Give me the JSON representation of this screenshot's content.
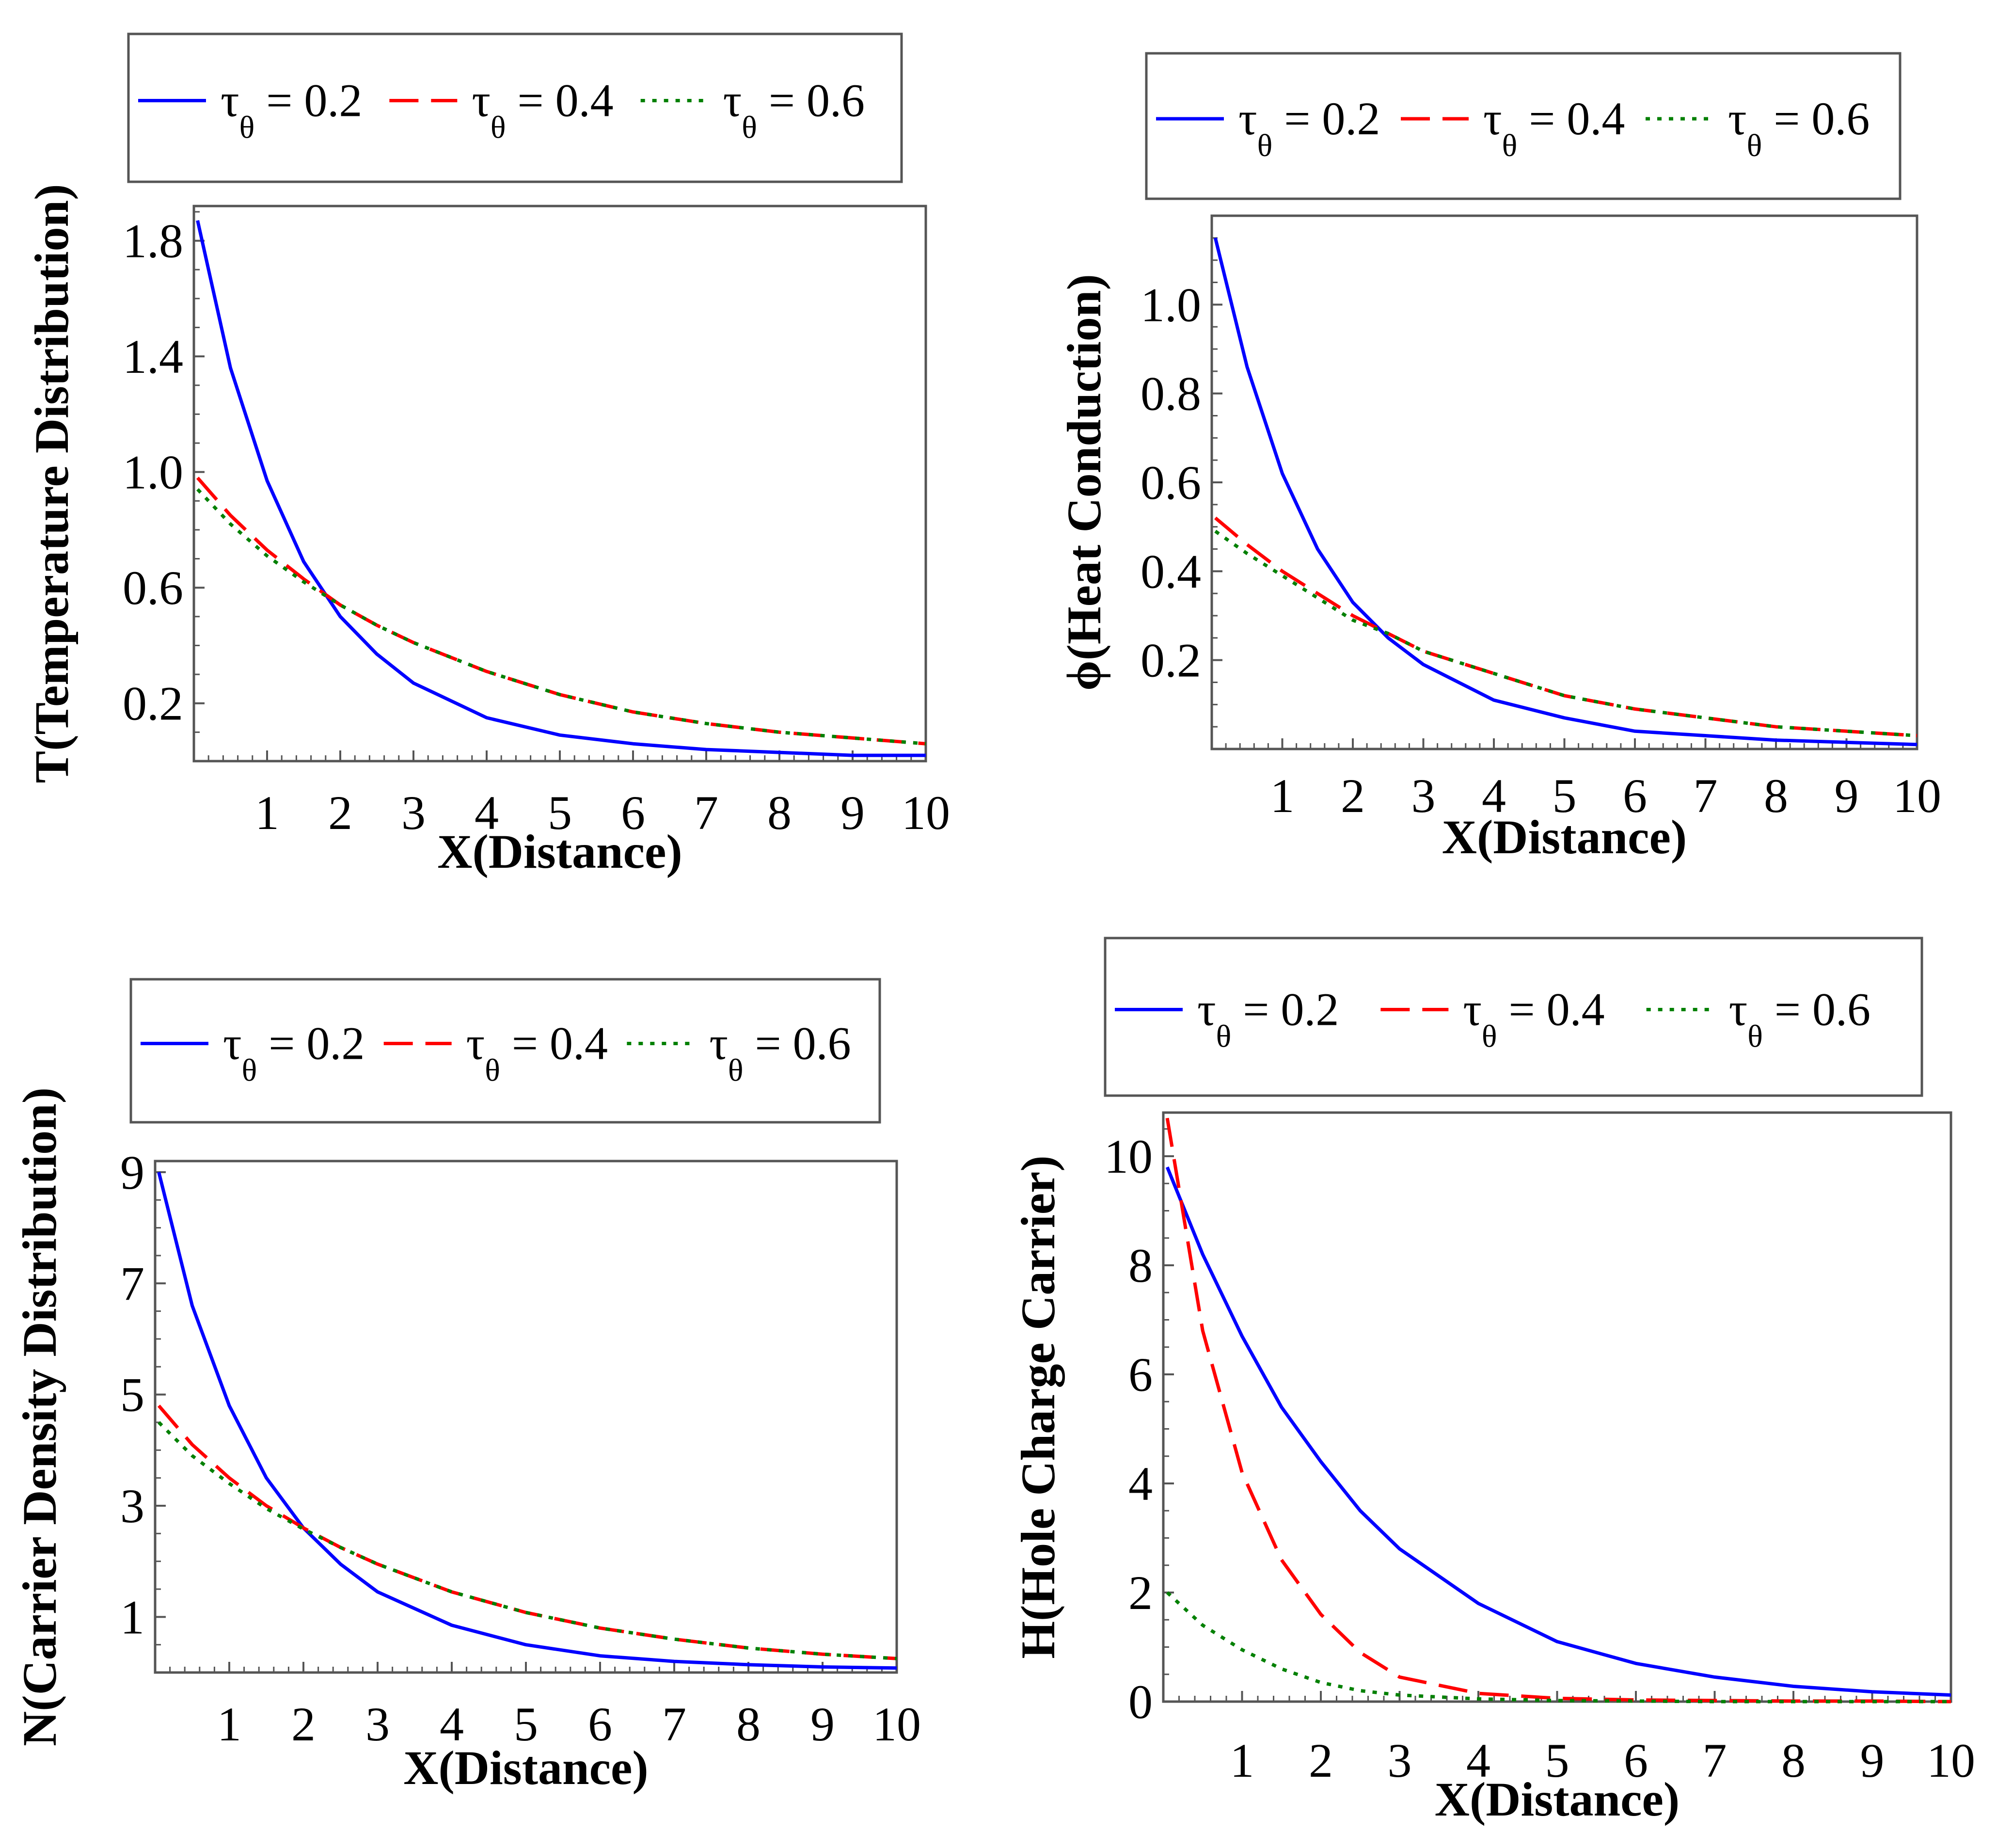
{
  "legend": {
    "entries": [
      {
        "symbol": "τ",
        "subscript": "θ",
        "text": " = 0.2",
        "color": "#0000ff",
        "dash": "solid"
      },
      {
        "symbol": "τ",
        "subscript": "θ",
        "text": " = 0.4",
        "color": "#ff0000",
        "dash": "dashed"
      },
      {
        "symbol": "τ",
        "subscript": "θ",
        "text": " = 0.6",
        "color": "#008000",
        "dash": "dotted"
      }
    ]
  },
  "chart_data": [
    {
      "type": "line",
      "id": "temperature",
      "xlabel": "X(Distance)",
      "ylabel": "T(Temperature Distribution)",
      "xlim": [
        0,
        10
      ],
      "ylim": [
        0.0,
        1.92
      ],
      "xticks": [
        "1",
        "2",
        "3",
        "4",
        "5",
        "6",
        "7",
        "8",
        "9",
        "10"
      ],
      "yticks": [
        {
          "v": 0.2,
          "label": "0.2"
        },
        {
          "v": 0.6,
          "label": "0.6"
        },
        {
          "v": 1.0,
          "label": "1.0"
        },
        {
          "v": 1.4,
          "label": "1.4"
        },
        {
          "v": 1.8,
          "label": "1.8"
        }
      ],
      "x": [
        0.05,
        0.5,
        1,
        1.5,
        2,
        2.5,
        3,
        4,
        5,
        6,
        7,
        8,
        9,
        10
      ],
      "series": [
        {
          "name": "τθ = 0.2",
          "values": [
            1.87,
            1.36,
            0.97,
            0.69,
            0.5,
            0.37,
            0.27,
            0.15,
            0.09,
            0.06,
            0.04,
            0.03,
            0.02,
            0.02
          ]
        },
        {
          "name": "τθ = 0.4",
          "values": [
            0.98,
            0.85,
            0.73,
            0.63,
            0.54,
            0.47,
            0.41,
            0.31,
            0.23,
            0.17,
            0.13,
            0.1,
            0.08,
            0.06
          ]
        },
        {
          "name": "τθ = 0.6",
          "values": [
            0.94,
            0.82,
            0.71,
            0.62,
            0.54,
            0.47,
            0.41,
            0.31,
            0.23,
            0.17,
            0.13,
            0.1,
            0.08,
            0.06
          ]
        }
      ]
    },
    {
      "type": "line",
      "id": "heat-conduction",
      "xlabel": "X(Distance)",
      "ylabel": "ϕ(Heat Conduction)",
      "xlim": [
        0,
        10
      ],
      "ylim": [
        0.0,
        1.2
      ],
      "xticks": [
        "1",
        "2",
        "3",
        "4",
        "5",
        "6",
        "7",
        "8",
        "9",
        "10"
      ],
      "yticks": [
        {
          "v": 0.2,
          "label": "0.2"
        },
        {
          "v": 0.4,
          "label": "0.4"
        },
        {
          "v": 0.6,
          "label": "0.6"
        },
        {
          "v": 0.8,
          "label": "0.8"
        },
        {
          "v": 1.0,
          "label": "1.0"
        }
      ],
      "x": [
        0.05,
        0.5,
        1,
        1.5,
        2,
        2.5,
        3,
        4,
        5,
        6,
        7,
        8,
        9,
        10
      ],
      "series": [
        {
          "name": "τθ = 0.2",
          "values": [
            1.15,
            0.86,
            0.62,
            0.45,
            0.33,
            0.25,
            0.19,
            0.11,
            0.07,
            0.04,
            0.03,
            0.02,
            0.015,
            0.01
          ]
        },
        {
          "name": "τθ = 0.4",
          "values": [
            0.52,
            0.46,
            0.4,
            0.35,
            0.3,
            0.26,
            0.22,
            0.17,
            0.12,
            0.09,
            0.07,
            0.05,
            0.04,
            0.03
          ]
        },
        {
          "name": "τθ = 0.6",
          "values": [
            0.49,
            0.44,
            0.39,
            0.34,
            0.29,
            0.26,
            0.22,
            0.17,
            0.12,
            0.09,
            0.07,
            0.05,
            0.04,
            0.03
          ]
        }
      ]
    },
    {
      "type": "line",
      "id": "carrier-density",
      "xlabel": "X(Distance)",
      "ylabel": "N(Carrier Density Distribution)",
      "xlim": [
        0,
        10
      ],
      "ylim": [
        0,
        9.2
      ],
      "xticks": [
        "1",
        "2",
        "3",
        "4",
        "5",
        "6",
        "7",
        "8",
        "9",
        "10"
      ],
      "yticks": [
        {
          "v": 1,
          "label": "1"
        },
        {
          "v": 3,
          "label": "3"
        },
        {
          "v": 5,
          "label": "5"
        },
        {
          "v": 7,
          "label": "7"
        },
        {
          "v": 9,
          "label": "9"
        }
      ],
      "x": [
        0.05,
        0.5,
        1,
        1.5,
        2,
        2.5,
        3,
        4,
        5,
        6,
        7,
        8,
        9,
        10
      ],
      "series": [
        {
          "name": "τθ = 0.2",
          "values": [
            9.0,
            6.6,
            4.8,
            3.5,
            2.6,
            1.95,
            1.45,
            0.85,
            0.5,
            0.3,
            0.2,
            0.14,
            0.1,
            0.08
          ]
        },
        {
          "name": "τθ = 0.4",
          "values": [
            4.8,
            4.1,
            3.5,
            3.0,
            2.6,
            2.25,
            1.95,
            1.45,
            1.08,
            0.8,
            0.6,
            0.44,
            0.33,
            0.25
          ]
        },
        {
          "name": "τθ = 0.6",
          "values": [
            4.5,
            3.9,
            3.4,
            2.95,
            2.58,
            2.25,
            1.95,
            1.45,
            1.08,
            0.8,
            0.6,
            0.44,
            0.33,
            0.25
          ]
        }
      ]
    },
    {
      "type": "line",
      "id": "hole-charge",
      "xlabel": "X(Distance)",
      "ylabel": "H(Hole Charge Carrier)",
      "xlim": [
        0,
        10
      ],
      "ylim": [
        0,
        10.8
      ],
      "xticks": [
        "1",
        "2",
        "3",
        "4",
        "5",
        "6",
        "7",
        "8",
        "9",
        "10"
      ],
      "yticks": [
        {
          "v": 0,
          "label": "0"
        },
        {
          "v": 2,
          "label": "2"
        },
        {
          "v": 4,
          "label": "4"
        },
        {
          "v": 6,
          "label": "6"
        },
        {
          "v": 8,
          "label": "8"
        },
        {
          "v": 10,
          "label": "10"
        }
      ],
      "x": [
        0.05,
        0.5,
        1,
        1.5,
        2,
        2.5,
        3,
        4,
        5,
        6,
        7,
        8,
        9,
        10
      ],
      "series": [
        {
          "name": "τθ = 0.2",
          "values": [
            9.8,
            8.2,
            6.7,
            5.4,
            4.4,
            3.5,
            2.8,
            1.8,
            1.1,
            0.7,
            0.45,
            0.28,
            0.18,
            0.12
          ]
        },
        {
          "name": "τθ = 0.4",
          "values": [
            10.7,
            6.8,
            4.2,
            2.6,
            1.6,
            0.9,
            0.45,
            0.15,
            0.06,
            0.03,
            0.02,
            0.01,
            0.01,
            0.0
          ]
        },
        {
          "name": "τθ = 0.6",
          "values": [
            2.0,
            1.4,
            0.95,
            0.6,
            0.35,
            0.2,
            0.12,
            0.05,
            0.02,
            0.01,
            0.0,
            0.0,
            0.0,
            0.0
          ]
        }
      ]
    }
  ]
}
